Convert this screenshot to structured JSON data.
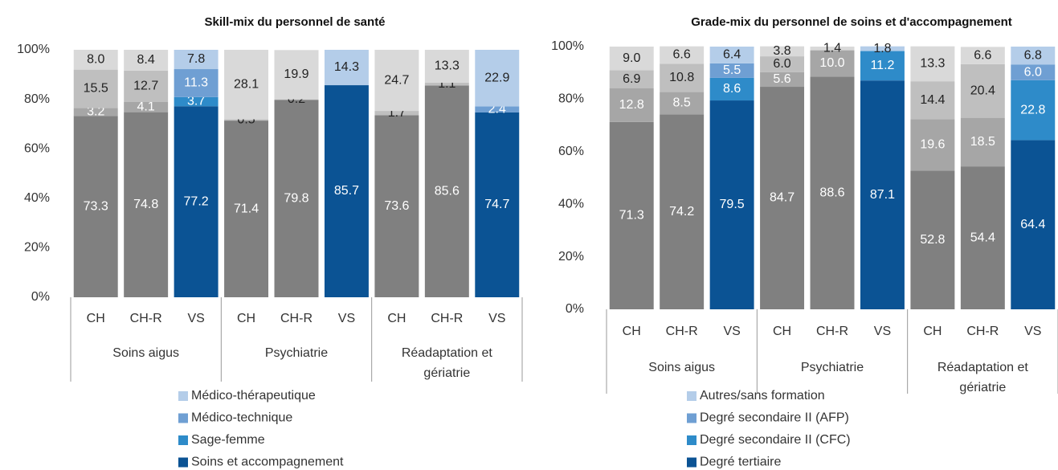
{
  "chart_data": [
    {
      "type": "bar",
      "stacked": true,
      "title": "Skill-mix du personnel de santé",
      "groups": [
        "Soins aigus",
        "Psychiatrie",
        "Réadaptation et gériatrie"
      ],
      "categories": [
        "CH",
        "CH-R",
        "VS",
        "CH",
        "CH-R",
        "VS",
        "CH",
        "CH-R",
        "VS"
      ],
      "ylim": [
        0,
        100
      ],
      "yticks": [
        {
          "value": 0,
          "label": "0%"
        },
        {
          "value": 20,
          "label": "20%"
        },
        {
          "value": 40,
          "label": "40%"
        },
        {
          "value": 60,
          "label": "60%"
        },
        {
          "value": 80,
          "label": "80%"
        },
        {
          "value": 100,
          "label": "100%"
        }
      ],
      "series": [
        {
          "name": "Soins et accompagnement",
          "color": "#0b5394",
          "colors": [
            "#808080",
            "#808080",
            "#0b5394",
            "#808080",
            "#808080",
            "#0b5394",
            "#808080",
            "#808080",
            "#0b5394"
          ],
          "values": [
            73.3,
            74.8,
            77.2,
            71.4,
            79.8,
            85.7,
            73.6,
            85.6,
            74.7
          ],
          "value_labels": [
            "73.3",
            "74.8",
            "77.2",
            "71.4",
            "79.8",
            "85.7",
            "73.6",
            "85.6",
            "74.7"
          ]
        },
        {
          "name": "Sage-femme",
          "color": "#2e8bc9",
          "colors": [
            "#a6a6a6",
            "#a6a6a6",
            "#2e8bc9",
            "#a6a6a6",
            "#a6a6a6",
            "#2e8bc9",
            "#a6a6a6",
            "#a6a6a6",
            "#2e8bc9"
          ],
          "values": [
            3.2,
            4.1,
            3.7,
            null,
            null,
            null,
            null,
            null,
            null
          ],
          "value_labels": [
            "3.2",
            "4.1",
            "3.7",
            null,
            null,
            null,
            null,
            null,
            null
          ]
        },
        {
          "name": "Médico-technique",
          "color": "#6f9fd3",
          "colors": [
            "#bfbfbf",
            "#bfbfbf",
            "#6f9fd3",
            "#bfbfbf",
            "#bfbfbf",
            "#6f9fd3",
            "#bfbfbf",
            "#bfbfbf",
            "#6f9fd3"
          ],
          "values": [
            15.5,
            12.7,
            11.3,
            0.5,
            0.2,
            null,
            1.7,
            1.1,
            2.4
          ],
          "value_labels": [
            "15.5",
            "12.7",
            "11.3",
            "0.5",
            "0.2",
            null,
            "1.7",
            "1.1",
            "2.4"
          ]
        },
        {
          "name": "Médico-thérapeutique",
          "color": "#b4cde9",
          "colors": [
            "#d9d9d9",
            "#d9d9d9",
            "#b4cde9",
            "#d9d9d9",
            "#d9d9d9",
            "#b4cde9",
            "#d9d9d9",
            "#d9d9d9",
            "#b4cde9"
          ],
          "values": [
            8.0,
            8.4,
            7.8,
            28.1,
            19.9,
            14.3,
            24.7,
            13.3,
            22.9
          ],
          "value_labels": [
            "8.0",
            "8.4",
            "7.8",
            "28.1",
            "19.9",
            "14.3",
            "24.7",
            "13.3",
            "22.9"
          ]
        }
      ]
    },
    {
      "type": "bar",
      "stacked": true,
      "title": "Grade-mix du personnel de soins et d'accompagnement",
      "groups": [
        "Soins aigus",
        "Psychiatrie",
        "Réadaptation et gériatrie"
      ],
      "categories": [
        "CH",
        "CH-R",
        "VS",
        "CH",
        "CH-R",
        "VS",
        "CH",
        "CH-R",
        "VS"
      ],
      "ylim": [
        0,
        100
      ],
      "yticks": [
        {
          "value": 0,
          "label": "0%"
        },
        {
          "value": 20,
          "label": "20%"
        },
        {
          "value": 40,
          "label": "40%"
        },
        {
          "value": 60,
          "label": "60%"
        },
        {
          "value": 80,
          "label": "80%"
        },
        {
          "value": 100,
          "label": "100%"
        }
      ],
      "series": [
        {
          "name": "Degré tertiaire",
          "color": "#0b5394",
          "colors": [
            "#808080",
            "#808080",
            "#0b5394",
            "#808080",
            "#808080",
            "#0b5394",
            "#808080",
            "#808080",
            "#0b5394"
          ],
          "values": [
            71.3,
            74.2,
            79.5,
            84.7,
            88.6,
            87.1,
            52.8,
            54.4,
            64.4
          ],
          "value_labels": [
            "71.3",
            "74.2",
            "79.5",
            "84.7",
            "88.6",
            "87.1",
            "52.8",
            "54.4",
            "64.4"
          ]
        },
        {
          "name": "Degré secondaire II (CFC)",
          "color": "#2e8bc9",
          "colors": [
            "#a6a6a6",
            "#a6a6a6",
            "#2e8bc9",
            "#a6a6a6",
            "#a6a6a6",
            "#2e8bc9",
            "#a6a6a6",
            "#a6a6a6",
            "#2e8bc9"
          ],
          "values": [
            12.8,
            8.5,
            8.6,
            5.6,
            10.0,
            11.2,
            19.6,
            18.5,
            22.8
          ],
          "value_labels": [
            "12.8",
            "8.5",
            "8.6",
            "5.6",
            "10.0",
            "11.2",
            "19.6",
            "18.5",
            "22.8"
          ]
        },
        {
          "name": "Degré secondaire II (AFP)",
          "color": "#6f9fd3",
          "colors": [
            "#bfbfbf",
            "#bfbfbf",
            "#6f9fd3",
            "#bfbfbf",
            "#bfbfbf",
            "#6f9fd3",
            "#bfbfbf",
            "#bfbfbf",
            "#6f9fd3"
          ],
          "values": [
            6.9,
            10.8,
            5.5,
            6.0,
            null,
            null,
            14.4,
            20.4,
            6.0
          ],
          "value_labels": [
            "6.9",
            "10.8",
            "5.5",
            "6.0",
            null,
            null,
            "14.4",
            "20.4",
            "6.0"
          ]
        },
        {
          "name": "Autres/sans formation",
          "color": "#b4cde9",
          "colors": [
            "#d9d9d9",
            "#d9d9d9",
            "#b4cde9",
            "#d9d9d9",
            "#d9d9d9",
            "#b4cde9",
            "#d9d9d9",
            "#d9d9d9",
            "#b4cde9"
          ],
          "values": [
            9.0,
            6.6,
            6.4,
            3.8,
            1.4,
            1.8,
            13.3,
            6.6,
            6.8
          ],
          "value_labels": [
            "9.0",
            "6.6",
            "6.4",
            "3.8",
            "1.4",
            "1.8",
            "13.3",
            "6.6",
            "6.8"
          ]
        }
      ]
    }
  ]
}
